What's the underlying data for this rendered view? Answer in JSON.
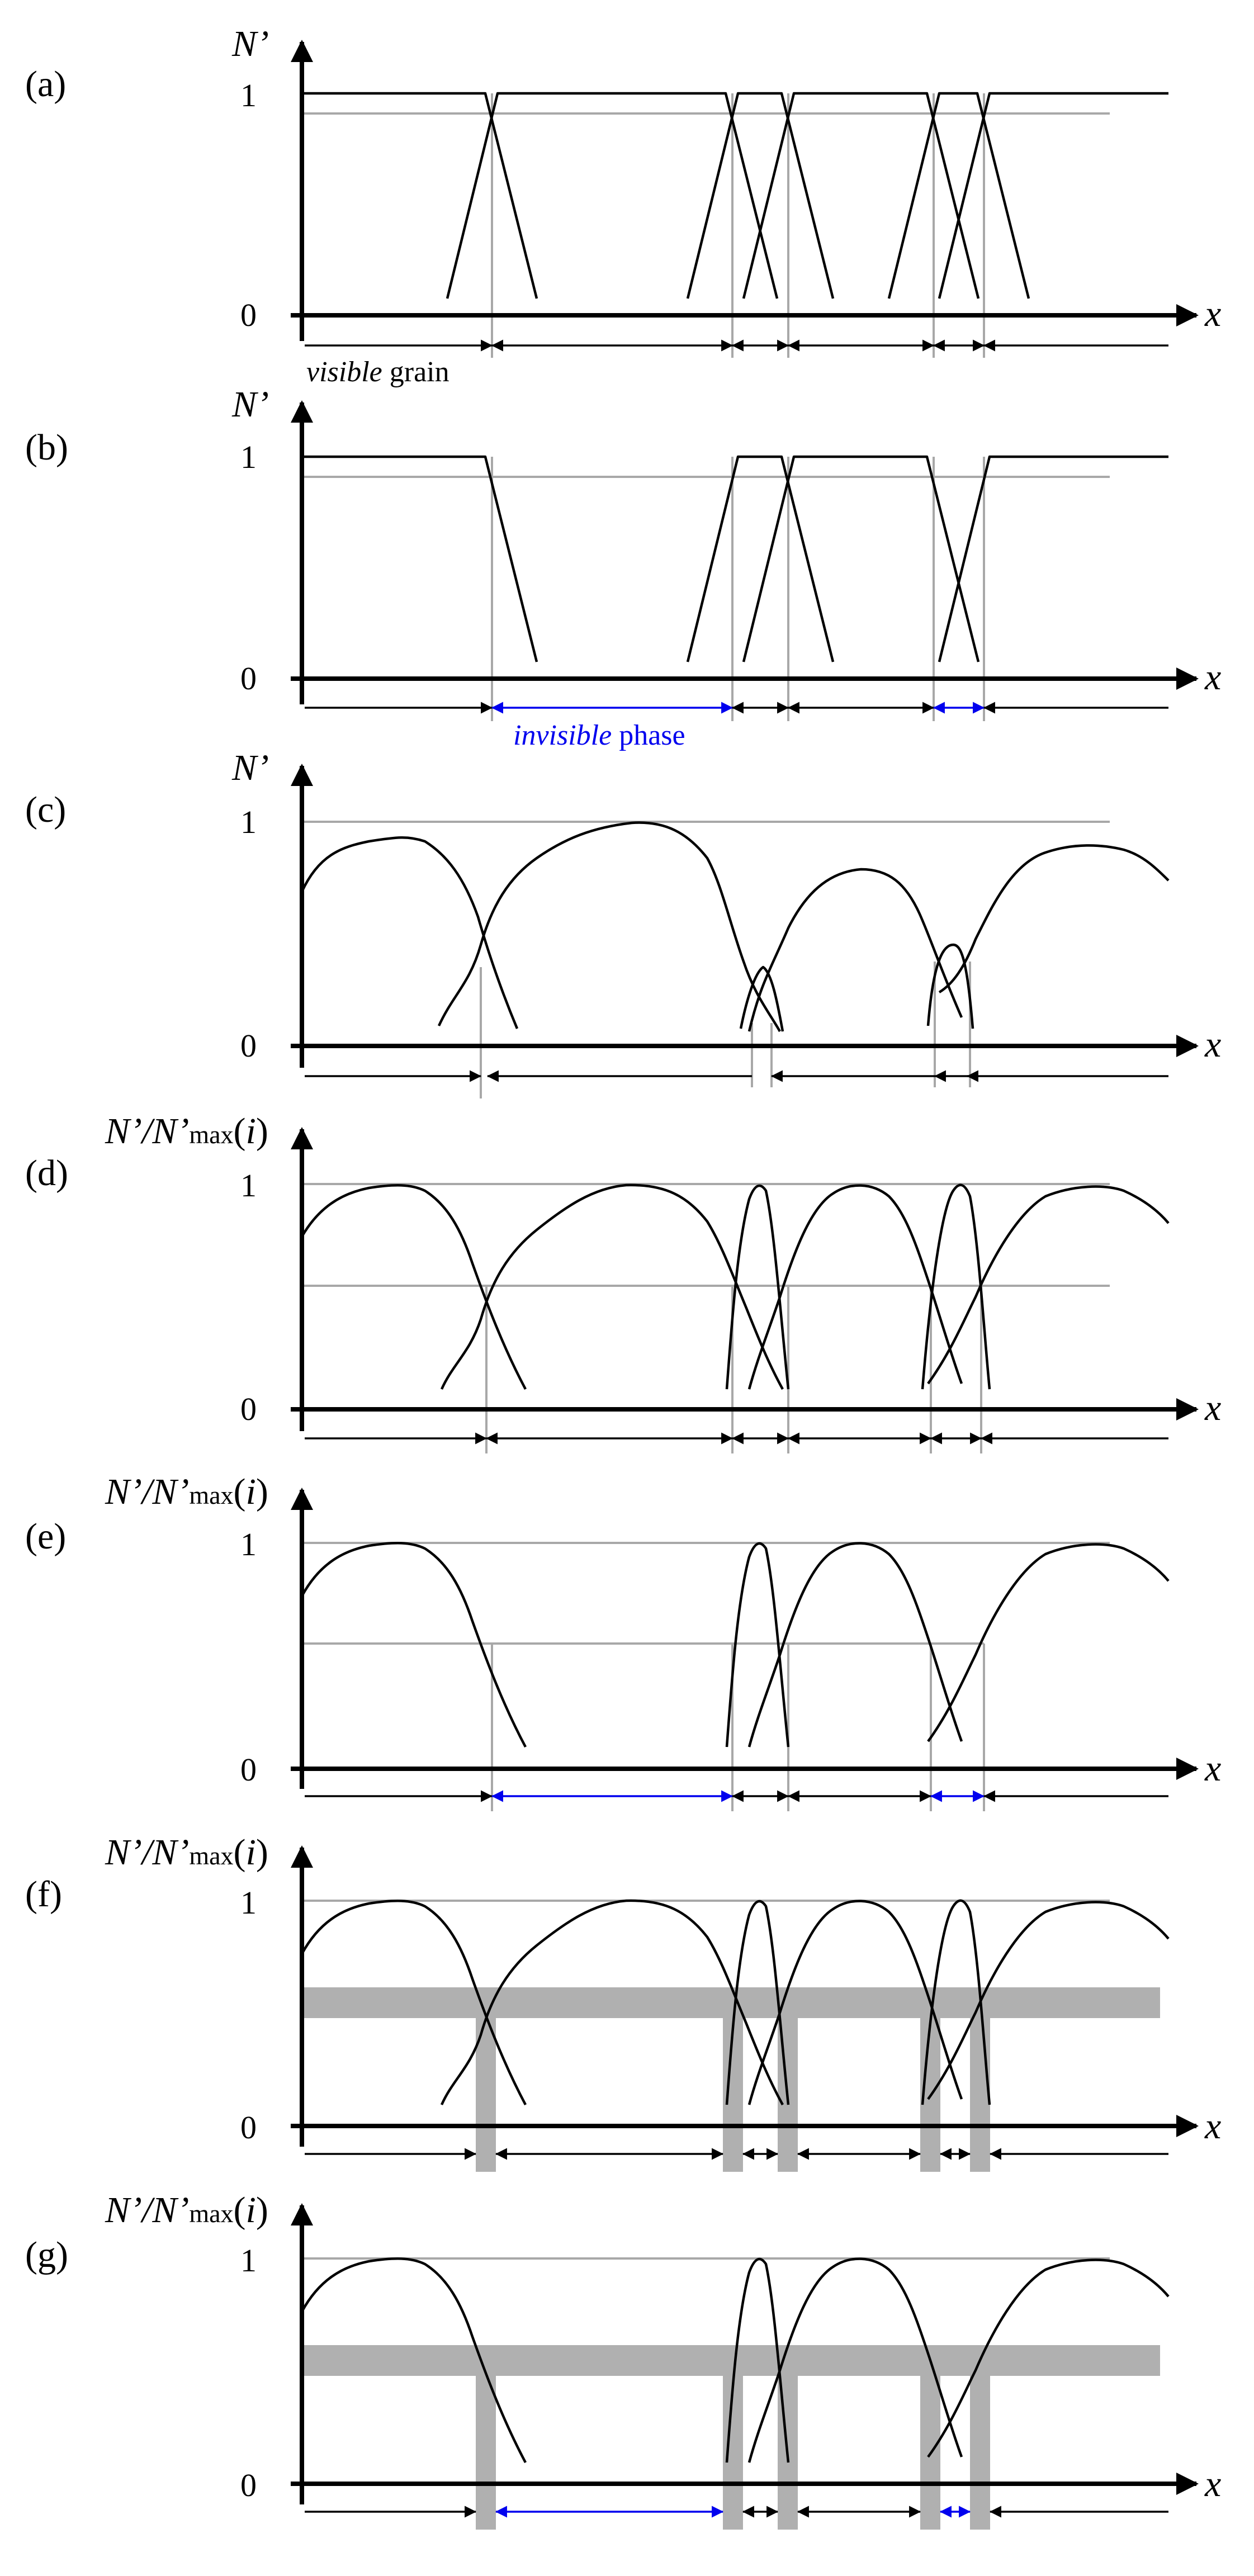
{
  "figure": {
    "panels": [
      {
        "id": "a",
        "label": "(a)",
        "ylabel": "N’",
        "ytick_top": "1",
        "ytick_bottom": "0",
        "xlabel": "x",
        "annotation": {
          "italic": "visible",
          "rest": " grain",
          "color": "#000000"
        }
      },
      {
        "id": "b",
        "label": "(b)",
        "ylabel": "N’",
        "ytick_top": "1",
        "ytick_bottom": "0",
        "xlabel": "x",
        "annotation": {
          "italic": "invisible",
          "rest": " phase",
          "color": "#0000ee"
        }
      },
      {
        "id": "c",
        "label": "(c)",
        "ylabel": "N’",
        "ytick_top": "1",
        "ytick_bottom": "0",
        "xlabel": "x"
      },
      {
        "id": "d",
        "label": "(d)",
        "ylabel_main": "N’/N’",
        "ylabel_sub": "max",
        "ylabel_open": "(",
        "ylabel_var": "i",
        "ylabel_close": ")",
        "ytick_top": "1",
        "ytick_bottom": "0",
        "xlabel": "x"
      },
      {
        "id": "e",
        "label": "(e)",
        "ylabel_main": "N’/N’",
        "ylabel_sub": "max",
        "ylabel_open": "(",
        "ylabel_var": "i",
        "ylabel_close": ")",
        "ytick_top": "1",
        "ytick_bottom": "0",
        "xlabel": "x"
      },
      {
        "id": "f",
        "label": "(f)",
        "ylabel_main": "N’/N’",
        "ylabel_sub": "max",
        "ylabel_open": "(",
        "ylabel_var": "i",
        "ylabel_close": ")",
        "ytick_top": "1",
        "ytick_bottom": "0",
        "xlabel": "x"
      },
      {
        "id": "g",
        "label": "(g)",
        "ylabel_main": "N’/N’",
        "ylabel_sub": "max",
        "ylabel_open": "(",
        "ylabel_var": "i",
        "ylabel_close": ")",
        "ytick_top": "1",
        "ytick_bottom": "0",
        "xlabel": "x"
      }
    ],
    "colors": {
      "curve": "#000000",
      "guide": "#a8a8a8",
      "band": "#b0b0b0",
      "invisible_phase": "#0000ee"
    }
  }
}
